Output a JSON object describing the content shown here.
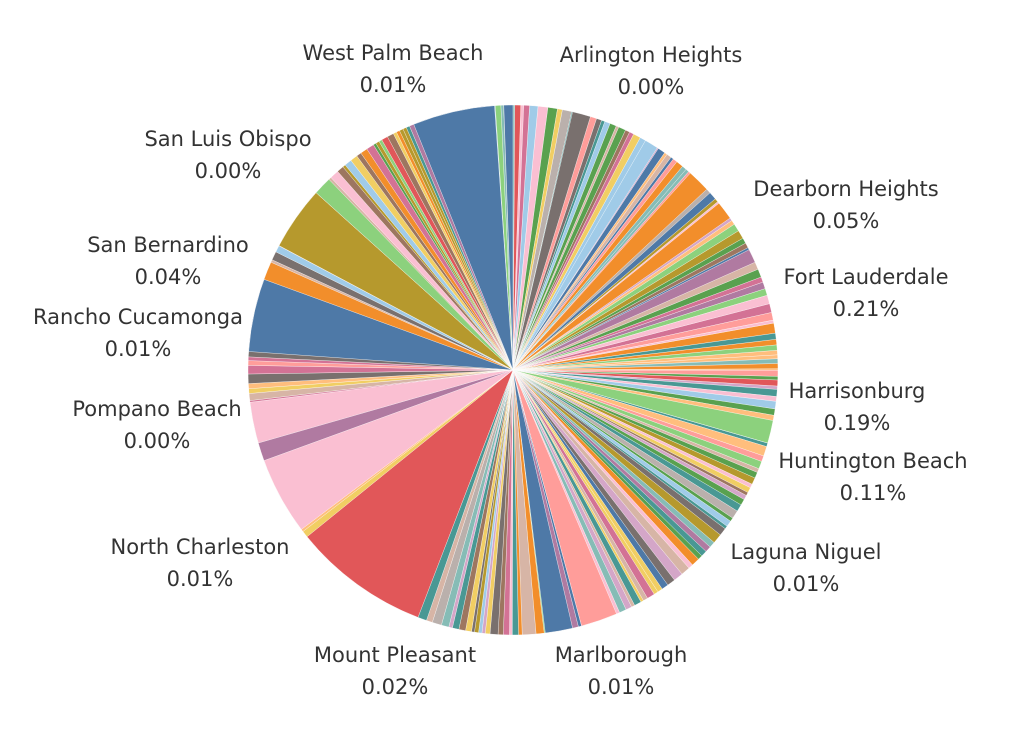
{
  "chart_data": {
    "type": "pie",
    "title": "",
    "palette": [
      "#4e79a7",
      "#a0cbe8",
      "#f28e2b",
      "#ffbe7d",
      "#59a14f",
      "#8cd17d",
      "#b6992d",
      "#f1ce63",
      "#499894",
      "#86bcb6",
      "#e15759",
      "#ff9d9a",
      "#79706e",
      "#bab0ac",
      "#d37295",
      "#fabfd2",
      "#b07aa1",
      "#d4a6c8",
      "#9d7660",
      "#d7b5a6"
    ],
    "major_slices": [
      {
        "start_deg": 143.0,
        "sweep_deg": 30.0,
        "color": "#fabfd2"
      },
      {
        "start_deg": 111.0,
        "sweep_deg": 30.0,
        "color": "#e15759"
      },
      {
        "start_deg": 77.0,
        "sweep_deg": 6.0,
        "color": "#4e79a7"
      },
      {
        "start_deg": 67.0,
        "sweep_deg": 8.0,
        "color": "#ff9d9a"
      },
      {
        "start_deg": 248.0,
        "sweep_deg": 18.0,
        "color": "#4e79a7"
      },
      {
        "start_deg": 208.0,
        "sweep_deg": 14.0,
        "color": "#b6992d"
      },
      {
        "start_deg": 184.0,
        "sweep_deg": 18.0,
        "color": "#4e79a7"
      },
      {
        "start_deg": 222.0,
        "sweep_deg": 4.0,
        "color": "#8cd17d"
      },
      {
        "start_deg": 200.0,
        "sweep_deg": 4.0,
        "color": "#f28e2b"
      },
      {
        "start_deg": 11.0,
        "sweep_deg": 5.0,
        "color": "#8cd17d"
      },
      {
        "start_deg": 283.0,
        "sweep_deg": 4.0,
        "color": "#79706e"
      },
      {
        "start_deg": 300.0,
        "sweep_deg": 3.0,
        "color": "#a0cbe8"
      },
      {
        "start_deg": 312.0,
        "sweep_deg": 5.0,
        "color": "#f28e2b"
      },
      {
        "start_deg": 321.0,
        "sweep_deg": 4.0,
        "color": "#f28e2b"
      },
      {
        "start_deg": 333.0,
        "sweep_deg": 3.0,
        "color": "#b07aa1"
      },
      {
        "start_deg": 160.0,
        "sweep_deg": 4.0,
        "color": "#b07aa1"
      },
      {
        "start_deg": 85.0,
        "sweep_deg": 3.0,
        "color": "#d7b5a6"
      },
      {
        "start_deg": 268.0,
        "sweep_deg": 2.0,
        "color": "#4e79a7"
      }
    ],
    "labels": [
      {
        "name": "West Palm Beach",
        "value": "0.01%"
      },
      {
        "name": "Arlington Heights",
        "value": "0.00%"
      },
      {
        "name": "San Luis Obispo",
        "value": "0.00%"
      },
      {
        "name": "Dearborn Heights",
        "value": "0.05%"
      },
      {
        "name": "San Bernardino",
        "value": "0.04%"
      },
      {
        "name": "Fort Lauderdale",
        "value": "0.21%"
      },
      {
        "name": "Rancho Cucamonga",
        "value": "0.01%"
      },
      {
        "name": "Harrisonburg",
        "value": "0.19%"
      },
      {
        "name": "Pompano Beach",
        "value": "0.00%"
      },
      {
        "name": "Huntington Beach",
        "value": "0.11%"
      },
      {
        "name": "Laguna Niguel",
        "value": "0.01%"
      },
      {
        "name": "North Charleston",
        "value": "0.01%"
      },
      {
        "name": "Mount Pleasant",
        "value": "0.02%"
      },
      {
        "name": "Marlborough",
        "value": "0.01%"
      }
    ]
  }
}
